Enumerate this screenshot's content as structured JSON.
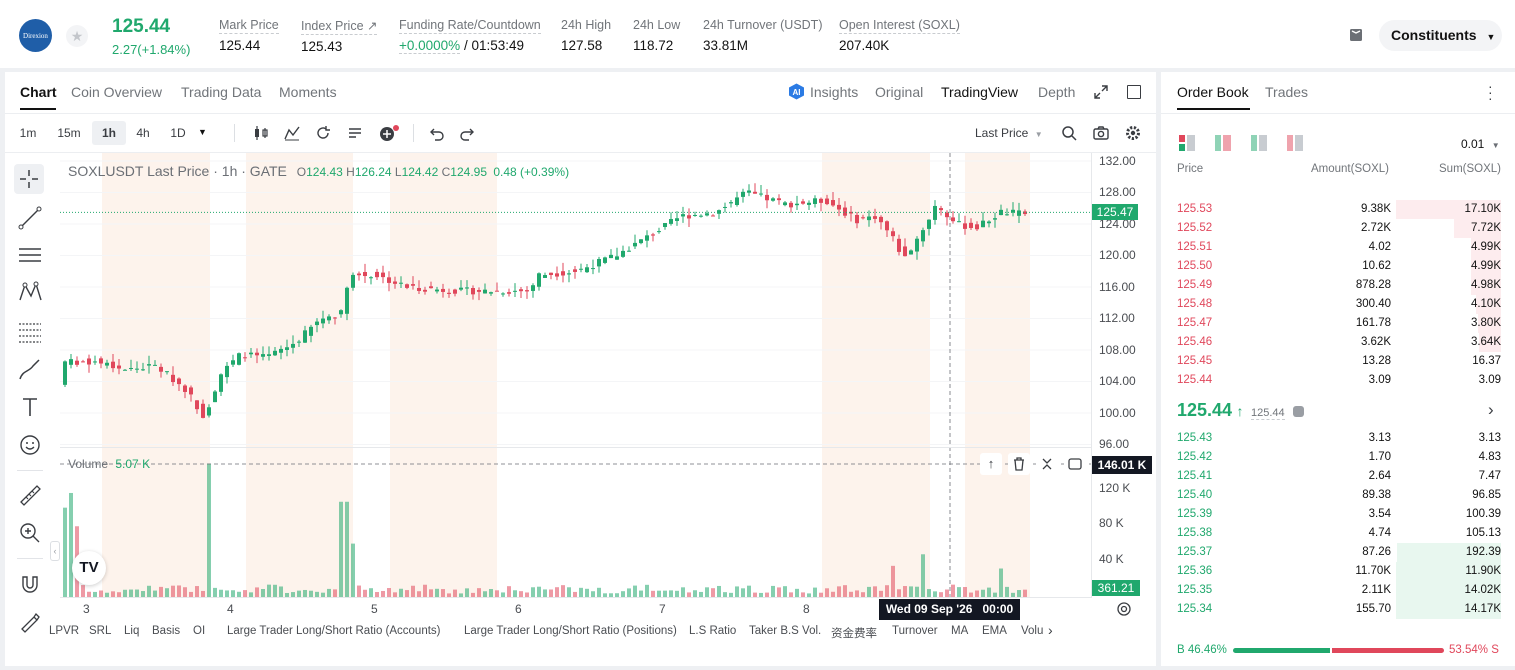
{
  "header": {
    "logo_text": "Direxion",
    "last_price": "125.44",
    "change": "2.27(+1.84%)",
    "stats": [
      {
        "label": "Mark Price",
        "value": "125.44"
      },
      {
        "label": "Index Price ↗",
        "value": "125.43"
      },
      {
        "label": "Funding Rate/Countdown",
        "value_green": "+0.0000%",
        "value": "/ 01:53:49"
      },
      {
        "label": "24h High",
        "value": "127.58"
      },
      {
        "label": "24h Low",
        "value": "118.72"
      },
      {
        "label": "24h Turnover (USDT)",
        "value": "33.81M"
      },
      {
        "label": "Open Interest (SOXL)",
        "value": "207.40K"
      }
    ],
    "constituents_label": "Constituents"
  },
  "chart_tabs": [
    "Chart",
    "Coin Overview",
    "Trading Data",
    "Moments"
  ],
  "view_tabs": [
    "Insights",
    "Original",
    "TradingView",
    "Depth"
  ],
  "timeframes": [
    "1m",
    "15m",
    "1h",
    "4h",
    "1D"
  ],
  "selected_timeframe": "1h",
  "price_type_label": "Last Price",
  "legend": {
    "symbol": "SOXLUSDT Last Price · 1h · GATE",
    "o_label": "O",
    "o": "124.43",
    "h_label": "H",
    "h": "126.24",
    "l_label": "L",
    "l": "124.42",
    "c_label": "C",
    "c": "124.95",
    "chg": "0.48 (+0.39%)"
  },
  "volume_legend": {
    "label": "Volume",
    "value": "5.07 K"
  },
  "price_axis": [
    "132.00",
    "128.00",
    "124.00",
    "120.00",
    "116.00",
    "112.00",
    "108.00",
    "104.00",
    "100.00",
    "96.00"
  ],
  "volume_axis": [
    "120 K",
    "80 K",
    "40 K"
  ],
  "x_axis": [
    "3",
    "4",
    "5",
    "6",
    "7",
    "8"
  ],
  "current_price_tag": "125.47",
  "crosshair_volume_tag": "146.01 K",
  "last_volume_tag": "361.21",
  "crosshair_time": "Wed 09 Sep '26   00:00",
  "indicators": [
    "LPVR",
    "SRL",
    "Liq",
    "Basis",
    "OI",
    "Large Trader Long/Short Ratio (Accounts)",
    "Large Trader Long/Short Ratio (Positions)",
    "L.S Ratio",
    "Taker B.S Vol.",
    "资金费率",
    "Turnover",
    "MA",
    "EMA",
    "Volu"
  ],
  "orderbook": {
    "tabs": [
      "Order Book",
      "Trades"
    ],
    "precision": "0.01",
    "headers": [
      "Price",
      "Amount(SOXL)",
      "Sum(SOXL)"
    ],
    "asks": [
      {
        "price": "125.53",
        "amount": "9.38K",
        "sum": "17.10K",
        "depth": 1.0
      },
      {
        "price": "125.52",
        "amount": "2.72K",
        "sum": "7.72K",
        "depth": 0.45
      },
      {
        "price": "125.51",
        "amount": "4.02",
        "sum": "4.99K",
        "depth": 0.29
      },
      {
        "price": "125.50",
        "amount": "10.62",
        "sum": "4.99K",
        "depth": 0.29
      },
      {
        "price": "125.49",
        "amount": "878.28",
        "sum": "4.98K",
        "depth": 0.29
      },
      {
        "price": "125.48",
        "amount": "300.40",
        "sum": "4.10K",
        "depth": 0.24
      },
      {
        "price": "125.47",
        "amount": "161.78",
        "sum": "3.80K",
        "depth": 0.22
      },
      {
        "price": "125.46",
        "amount": "3.62K",
        "sum": "3.64K",
        "depth": 0.21
      },
      {
        "price": "125.45",
        "amount": "13.28",
        "sum": "16.37",
        "depth": 0.0
      },
      {
        "price": "125.44",
        "amount": "3.09",
        "sum": "3.09",
        "depth": 0.0
      }
    ],
    "mid_price": "125.44",
    "mid_mark": "125.44",
    "bids": [
      {
        "price": "125.43",
        "amount": "3.13",
        "sum": "3.13",
        "depth": 0.0
      },
      {
        "price": "125.42",
        "amount": "1.70",
        "sum": "4.83",
        "depth": 0.0
      },
      {
        "price": "125.41",
        "amount": "2.64",
        "sum": "7.47",
        "depth": 0.0
      },
      {
        "price": "125.40",
        "amount": "89.38",
        "sum": "96.85",
        "depth": 0.0
      },
      {
        "price": "125.39",
        "amount": "3.54",
        "sum": "100.39",
        "depth": 0.0
      },
      {
        "price": "125.38",
        "amount": "4.74",
        "sum": "105.13",
        "depth": 0.0
      },
      {
        "price": "125.37",
        "amount": "87.26",
        "sum": "192.39",
        "depth": 0.99
      },
      {
        "price": "125.36",
        "amount": "11.70K",
        "sum": "11.90K",
        "depth": 1.0
      },
      {
        "price": "125.35",
        "amount": "2.11K",
        "sum": "14.02K",
        "depth": 1.0
      },
      {
        "price": "125.34",
        "amount": "155.70",
        "sum": "14.17K",
        "depth": 1.0
      }
    ],
    "buy_ratio_label": "B 46.46%",
    "sell_ratio_label": "53.54% S",
    "buy_ratio": 0.4646
  },
  "colors": {
    "up": "#20a86d",
    "down": "#e0475b",
    "accent": "#121212"
  }
}
